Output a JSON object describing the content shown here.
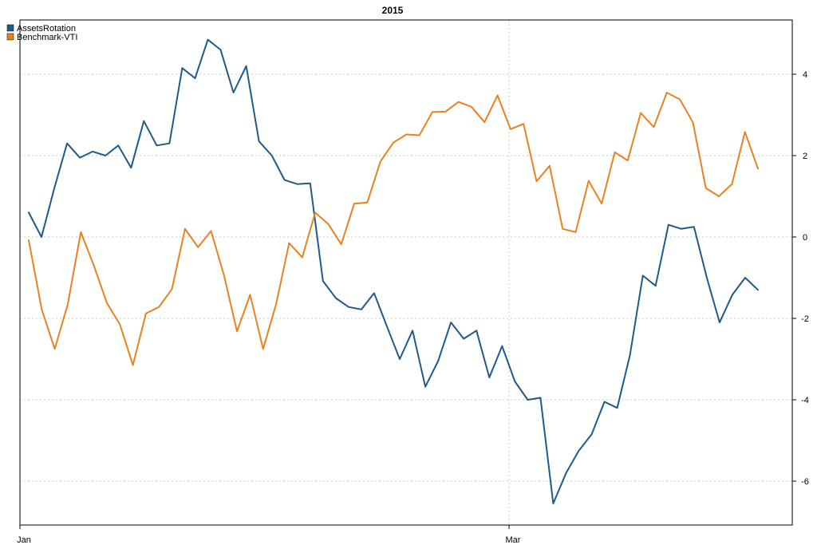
{
  "chart_data": {
    "type": "line",
    "title": "2015",
    "xlabel": "",
    "ylabel": "",
    "x_ticks": [
      "Jan",
      "Mar"
    ],
    "y_ticks": [
      -6,
      -4,
      -2,
      0,
      2,
      4
    ],
    "ylim": [
      -6.9,
      5.2
    ],
    "xlim": [
      -1,
      79
    ],
    "grid": true,
    "legend_position": "top-left",
    "series": [
      {
        "name": "AssetsRotation",
        "color": "#1f5a8c",
        "values": [
          0.6,
          -0.0,
          1.2,
          2.3,
          1.95,
          2.1,
          2.0,
          2.25,
          1.7,
          2.85,
          2.25,
          2.3,
          4.15,
          3.9,
          4.85,
          4.6,
          3.55,
          4.2,
          2.35,
          2.0,
          1.4,
          1.3,
          1.32,
          -1.08,
          -1.5,
          -1.72,
          -1.78,
          -1.38,
          -2.2,
          -3.0,
          -2.3,
          -3.68,
          -3.05,
          -2.1,
          -2.5,
          -2.3,
          -3.45,
          -2.68,
          -3.55,
          -4.0,
          -3.95,
          -6.55,
          -5.8,
          -5.25,
          -4.85,
          -4.05,
          -4.2,
          -2.9,
          -0.95,
          -1.2,
          0.3,
          0.2,
          0.25,
          -1.0,
          -2.1,
          -1.42,
          -1.0,
          -1.3
        ],
        "x": [
          1,
          5,
          6,
          7,
          9,
          12,
          13,
          14,
          15,
          16,
          19,
          20,
          21,
          22,
          24,
          25,
          26,
          27,
          28,
          31,
          32,
          33,
          34,
          35,
          38,
          39,
          40,
          41,
          42,
          45,
          46,
          47,
          48,
          50,
          51,
          52,
          53,
          54,
          56,
          57,
          58,
          59,
          62,
          63,
          64,
          65,
          66,
          69,
          70,
          71,
          72,
          75,
          76,
          77,
          78,
          79,
          82,
          83
        ]
      },
      {
        "name": "Benchmark-VTI",
        "color": "#e8821e",
        "values": [
          -0.08,
          -1.78,
          -2.75,
          -1.65,
          0.12,
          -0.7,
          -1.62,
          -2.15,
          -3.15,
          -1.88,
          -1.72,
          -1.28,
          0.2,
          -0.25,
          0.15,
          -0.95,
          -2.32,
          -1.42,
          -2.75,
          -1.65,
          -0.15,
          -0.5,
          0.6,
          0.32,
          -0.18,
          0.82,
          0.85,
          1.85,
          2.32,
          2.52,
          2.5,
          3.07,
          3.08,
          3.32,
          3.2,
          2.82,
          3.48,
          2.65,
          2.78,
          1.37,
          1.75,
          0.2,
          0.12,
          1.38,
          0.82,
          2.08,
          1.88,
          3.05,
          2.7,
          3.55,
          3.38,
          2.82,
          1.2,
          1.0,
          1.3,
          2.58,
          1.68
        ]
      }
    ]
  }
}
